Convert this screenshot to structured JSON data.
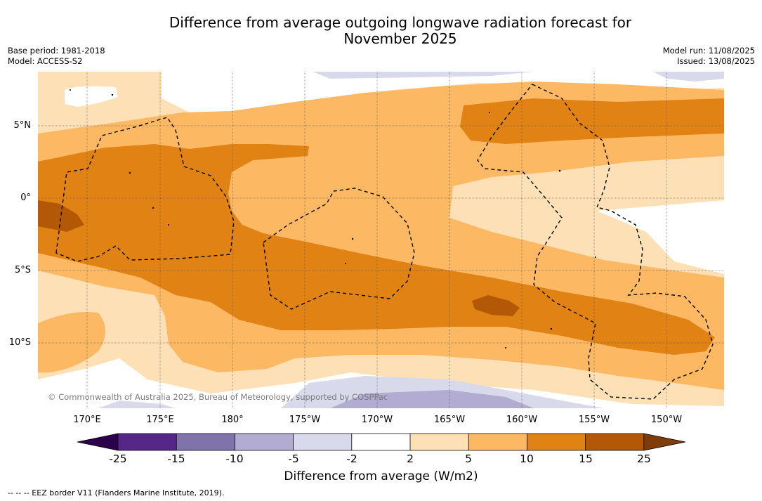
{
  "title_line1": "Difference from average outgoing longwave radiation forecast for",
  "title_line2": "November 2025",
  "meta_left": {
    "base_period": "Base period: 1981-2018",
    "model": "Model: ACCESS-S2"
  },
  "meta_right": {
    "model_run": "Model run: 11/08/2025",
    "issued": "Issued: 13/08/2025"
  },
  "copyright": "© Commonwealth of Australia 2025, Bureau of Meteorology, supported by COSPPac",
  "lon_labels": [
    "170°E",
    "175°E",
    "180°",
    "175°W",
    "170°W",
    "165°W",
    "160°W",
    "155°W",
    "150°W"
  ],
  "lat_labels": [
    "5°N",
    "0°",
    "5°S",
    "10°S"
  ],
  "colorbar": {
    "ticks": [
      "-25",
      "-15",
      "-10",
      "-5",
      "-2",
      "2",
      "5",
      "10",
      "15",
      "25"
    ],
    "colors": [
      "#542788",
      "#8073ac",
      "#b2abd2",
      "#d8daeb",
      "#ffffff",
      "#fee0b6",
      "#fdb863",
      "#e08214",
      "#b35806"
    ],
    "extend_low_color": "#2d004b",
    "extend_high_color": "#7f3b08",
    "label": "Difference from average (W/m2)"
  },
  "footnote": "--  --  -- EEZ border V11 (Flanders Marine Institute, 2019)."
}
